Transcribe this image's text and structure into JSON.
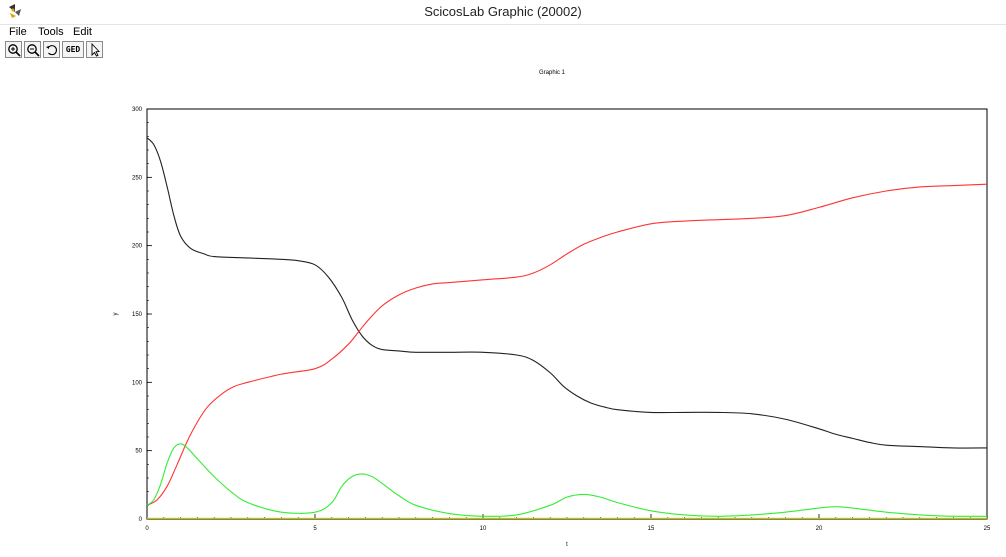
{
  "window": {
    "title": "ScicosLab Graphic (20002)",
    "app_icon": "scicoslab-logo-icon"
  },
  "menu": {
    "items": [
      "File",
      "Tools",
      "Edit"
    ]
  },
  "toolbar": {
    "buttons": [
      {
        "name": "zoom-in-button",
        "icon": "zoom-in-icon"
      },
      {
        "name": "zoom-out-button",
        "icon": "zoom-out-icon"
      },
      {
        "name": "rotate-button",
        "icon": "rotate-icon"
      },
      {
        "name": "ged-button",
        "label": "GED"
      },
      {
        "name": "select-pointer-button",
        "icon": "pointer-arrow-icon"
      }
    ]
  },
  "chart_data": {
    "type": "line",
    "title": "Graphic 1",
    "xlabel": "t",
    "ylabel": "y",
    "xlim": [
      0,
      25
    ],
    "ylim": [
      0,
      300
    ],
    "xticks": [
      0,
      5,
      10,
      15,
      20,
      25
    ],
    "yticks": [
      0,
      50,
      100,
      150,
      200,
      250,
      300
    ],
    "grid": false,
    "series": [
      {
        "color": "#222222",
        "x": [
          0,
          0.2,
          0.4,
          0.6,
          0.8,
          1.0,
          1.3,
          1.7,
          2,
          3,
          4,
          4.5,
          5,
          5.4,
          5.8,
          6.1,
          6.4,
          6.7,
          7,
          7.5,
          8,
          9,
          10,
          11,
          11.5,
          12,
          12.4,
          12.8,
          13.2,
          13.6,
          14,
          15,
          16,
          17,
          18,
          19,
          20,
          20.5,
          21,
          21.5,
          22,
          23,
          24,
          25
        ],
        "y": [
          279,
          274,
          262,
          243,
          222,
          207,
          198,
          194,
          192,
          191,
          190,
          189,
          186,
          177,
          162,
          146,
          134,
          127,
          124,
          123,
          122,
          122,
          122,
          120,
          116,
          107,
          97,
          90,
          85,
          82,
          80,
          78,
          78,
          78,
          77,
          73,
          66,
          62,
          59,
          56,
          54,
          53,
          52,
          52
        ]
      },
      {
        "color": "#ff3333",
        "x": [
          0,
          0.3,
          0.6,
          0.9,
          1.2,
          1.5,
          1.8,
          2.2,
          2.6,
          3,
          4,
          5,
          5.5,
          6,
          6.3,
          6.6,
          7,
          7.5,
          8,
          8.5,
          9,
          10,
          11,
          11.5,
          12,
          12.5,
          13,
          13.5,
          14,
          15,
          16,
          17,
          18,
          19,
          20,
          21,
          22,
          23,
          24,
          25
        ],
        "y": [
          10,
          14,
          24,
          40,
          57,
          71,
          82,
          91,
          97,
          100,
          106,
          110,
          117,
          128,
          137,
          146,
          156,
          164,
          169,
          172,
          173,
          175,
          177,
          180,
          186,
          194,
          201,
          206,
          210,
          216,
          218,
          219,
          220,
          222,
          228,
          235,
          240,
          243,
          244,
          245
        ]
      },
      {
        "color": "#33ee33",
        "x": [
          0,
          0.2,
          0.4,
          0.6,
          0.8,
          1.0,
          1.2,
          1.5,
          2,
          2.5,
          3,
          4,
          5,
          5.5,
          5.8,
          6.1,
          6.4,
          6.7,
          7,
          7.5,
          8,
          9,
          10,
          11,
          12,
          12.5,
          13,
          13.5,
          14,
          15,
          16,
          17,
          18,
          19,
          20,
          20.5,
          21,
          22,
          23,
          24,
          25
        ],
        "y": [
          10,
          14,
          25,
          41,
          52,
          55,
          52,
          44,
          31,
          20,
          12,
          5,
          5,
          12,
          24,
          31,
          33,
          31,
          26,
          17,
          10,
          4,
          2,
          3,
          10,
          16,
          18,
          16,
          12,
          6,
          3,
          2,
          3,
          5,
          8,
          9,
          8,
          5,
          3,
          2,
          2
        ]
      },
      {
        "color": "#dddd00",
        "x": [
          0,
          25
        ],
        "y": [
          0.5,
          0.5
        ]
      }
    ]
  }
}
